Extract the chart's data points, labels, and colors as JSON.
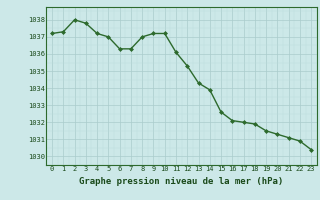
{
  "x": [
    0,
    1,
    2,
    3,
    4,
    5,
    6,
    7,
    8,
    9,
    10,
    11,
    12,
    13,
    14,
    15,
    16,
    17,
    18,
    19,
    20,
    21,
    22,
    23
  ],
  "y": [
    1037.2,
    1037.3,
    1038.0,
    1037.8,
    1037.2,
    1037.0,
    1036.3,
    1036.3,
    1037.0,
    1037.2,
    1037.2,
    1036.1,
    1035.3,
    1034.3,
    1033.9,
    1032.6,
    1032.1,
    1032.0,
    1031.9,
    1031.5,
    1031.3,
    1031.1,
    1030.9,
    1030.4
  ],
  "line_color": "#2d6a2d",
  "marker": "D",
  "marker_size": 2.0,
  "line_width": 1.0,
  "bg_color": "#cce8e8",
  "grid_color_major": "#aacccc",
  "grid_color_minor": "#bbdddd",
  "xlabel": "Graphe pression niveau de la mer (hPa)",
  "xlabel_color": "#1a4a1a",
  "xlabel_fontsize": 6.5,
  "ylim": [
    1029.5,
    1038.75
  ],
  "yticks": [
    1030,
    1031,
    1032,
    1033,
    1034,
    1035,
    1036,
    1037,
    1038
  ],
  "xticks": [
    0,
    1,
    2,
    3,
    4,
    5,
    6,
    7,
    8,
    9,
    10,
    11,
    12,
    13,
    14,
    15,
    16,
    17,
    18,
    19,
    20,
    21,
    22,
    23
  ],
  "tick_fontsize": 5.0,
  "tick_color": "#1a4a1a",
  "spine_color": "#2d6a2d"
}
